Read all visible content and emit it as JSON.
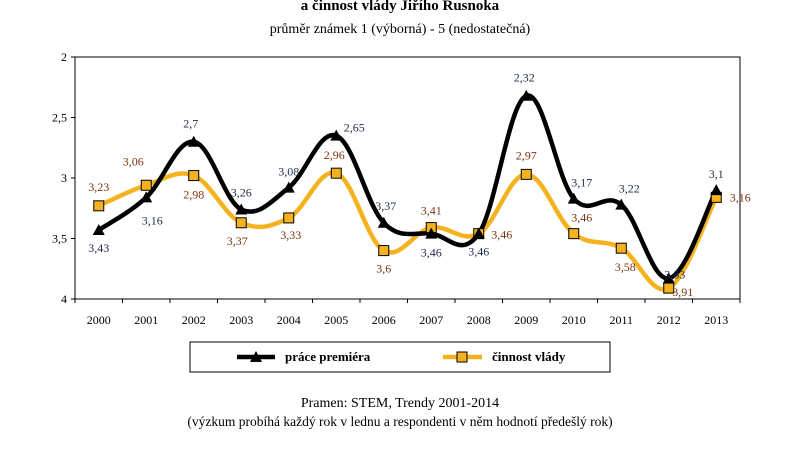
{
  "header": {
    "title": "a činnost vlády Jiřího Rusnoka",
    "subtitle": "průměr známek 1 (výborná) - 5 (nedostatečná)"
  },
  "chart_data": {
    "type": "line",
    "x": [
      "2000",
      "2001",
      "2002",
      "2003",
      "2004",
      "2005",
      "2006",
      "2007",
      "2008",
      "2009",
      "2010",
      "2011",
      "2012",
      "2013"
    ],
    "y_ticks": [
      "2",
      "2,5",
      "3",
      "3,5",
      "4"
    ],
    "ylim": [
      4,
      2
    ],
    "y_inverted": true,
    "grid": false,
    "legend_position": "bottom",
    "series": [
      {
        "name": "práce premiéra",
        "color": "#000000",
        "marker": "triangle",
        "values": [
          3.43,
          3.16,
          2.7,
          3.26,
          3.08,
          2.65,
          3.37,
          3.46,
          3.46,
          2.32,
          3.17,
          3.22,
          3.83,
          3.1
        ],
        "labels": [
          "3,43",
          "3,16",
          "2,7",
          "3,26",
          "3,08",
          "2,65",
          "3,37",
          "3,46",
          "3,46",
          "2,32",
          "3,17",
          "3,22",
          "3,83",
          "3,1"
        ]
      },
      {
        "name": "činnost vlády",
        "color": "#f5b21f",
        "marker": "square",
        "values": [
          3.23,
          3.06,
          2.98,
          3.37,
          3.33,
          2.96,
          3.6,
          3.41,
          3.46,
          2.97,
          3.46,
          3.58,
          3.91,
          3.16
        ],
        "labels": [
          "3,23",
          "3,06",
          "2,98",
          "3,37",
          "3,33",
          "2,96",
          "3,6",
          "3,41",
          "3,46",
          "2,97",
          "3,46",
          "3,58",
          "3,91",
          "3,16"
        ]
      }
    ]
  },
  "footer": {
    "source": "Pramen: STEM, Trendy 2001-2014",
    "note": "(výzkum probíhá každý rok v lednu a respondenti v něm hodnotí předešlý rok)"
  }
}
